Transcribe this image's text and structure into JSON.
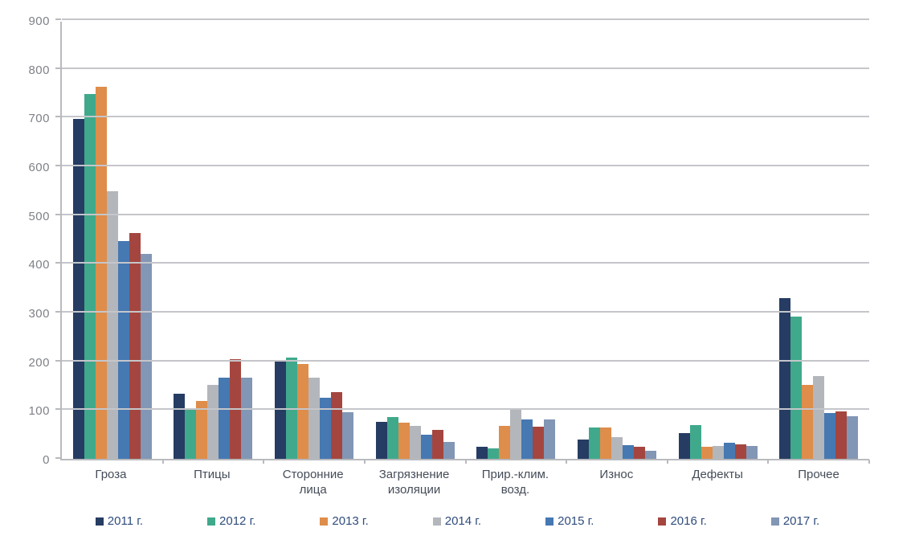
{
  "chart_data": {
    "type": "bar",
    "title": "",
    "xlabel": "",
    "ylabel": "",
    "ylim": [
      0,
      900
    ],
    "y_ticks": [
      0,
      100,
      200,
      300,
      400,
      500,
      600,
      700,
      800,
      900
    ],
    "grid": true,
    "legend_position": "bottom",
    "categories": [
      "Гроза",
      "Птицы",
      "Сторонние лица",
      "Загрязнение изоляции",
      "Прир.-клим. возд.",
      "Износ",
      "Дефекты",
      "Прочее"
    ],
    "series": [
      {
        "name": "2011 г.",
        "color": "#263c63",
        "values": [
          697,
          133,
          200,
          76,
          25,
          40,
          53,
          330
        ]
      },
      {
        "name": "2012 г.",
        "color": "#40a98c",
        "values": [
          748,
          100,
          207,
          85,
          22,
          65,
          70,
          292
        ]
      },
      {
        "name": "2013 г.",
        "color": "#de8d4b",
        "values": [
          763,
          118,
          194,
          74,
          67,
          65,
          24,
          151
        ]
      },
      {
        "name": "2014 г.",
        "color": "#b3b6bb",
        "values": [
          549,
          152,
          166,
          67,
          102,
          44,
          26,
          170
        ]
      },
      {
        "name": "2015 г.",
        "color": "#4678b2",
        "values": [
          446,
          166,
          125,
          49,
          81,
          28,
          33,
          94
        ]
      },
      {
        "name": "2016 г.",
        "color": "#a4463f",
        "values": [
          464,
          204,
          137,
          60,
          66,
          24,
          30,
          97
        ]
      },
      {
        "name": "2017 г.",
        "color": "#8296b5",
        "values": [
          421,
          166,
          96,
          35,
          81,
          16,
          26,
          87
        ]
      }
    ]
  }
}
